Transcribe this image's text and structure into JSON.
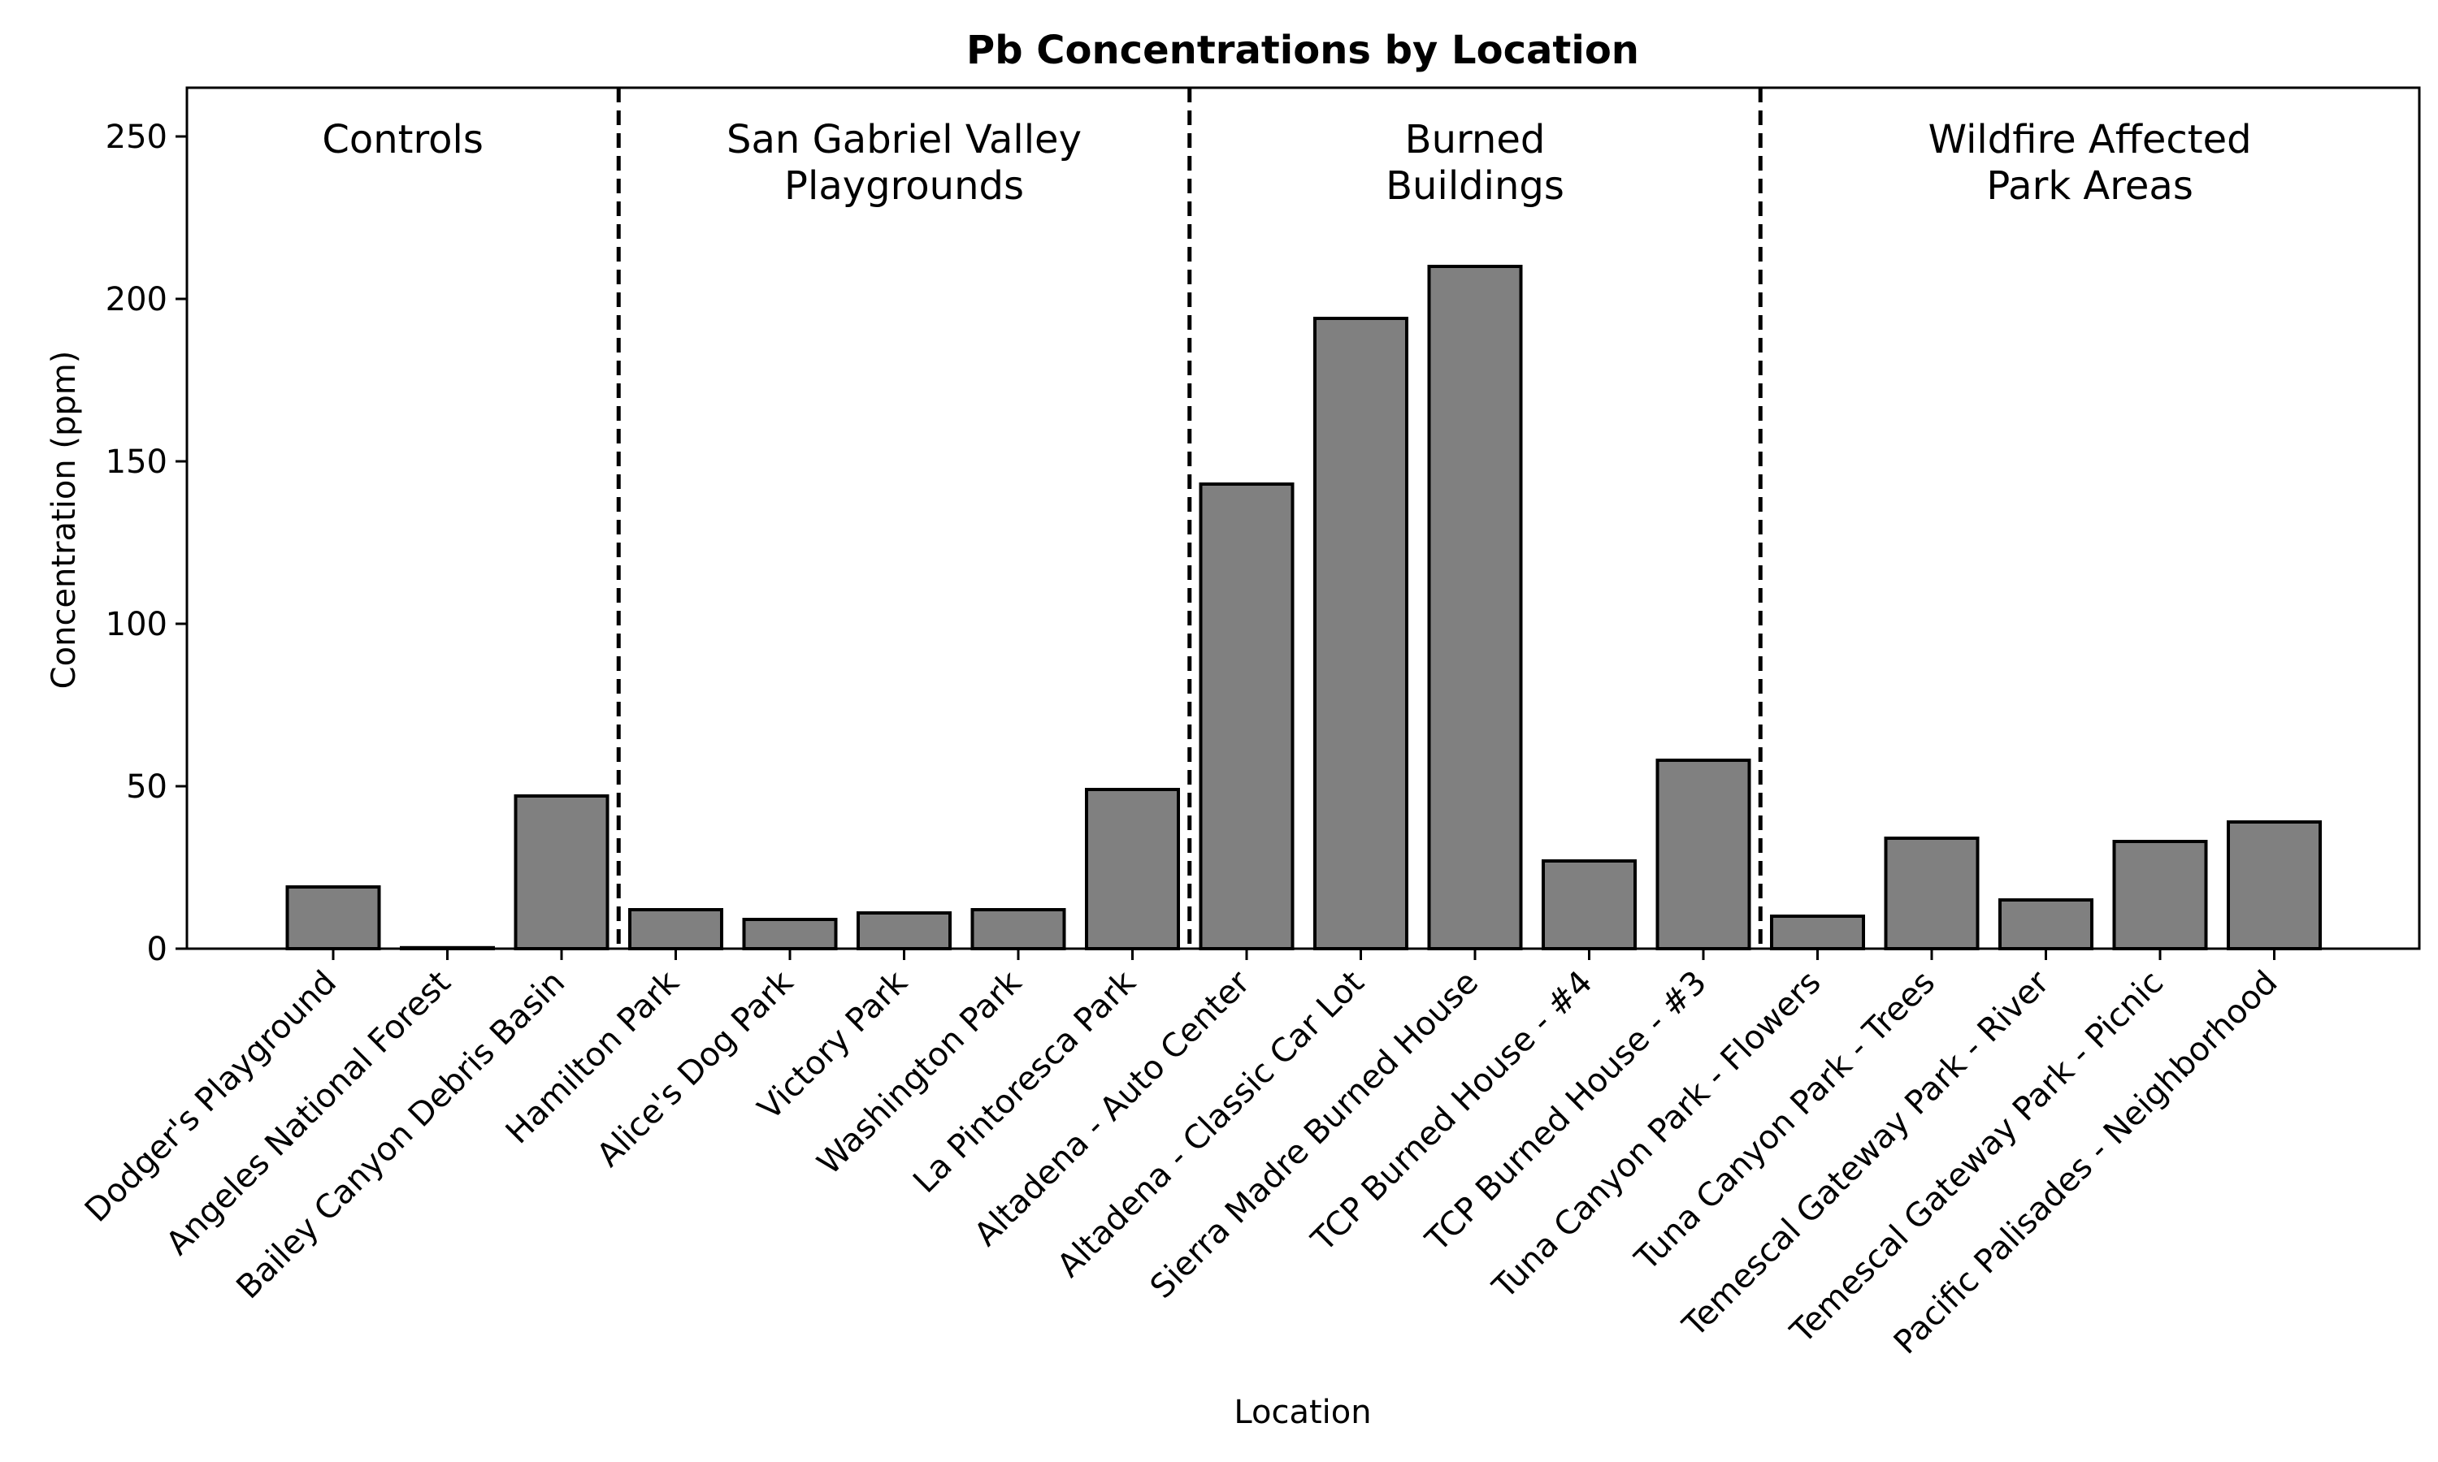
{
  "chart_data": {
    "type": "bar",
    "title": "Pb Concentrations by Location",
    "xlabel": "Location",
    "ylabel": "Concentration (ppm)",
    "ylim": [
      0,
      265
    ],
    "yticks": [
      0,
      50,
      100,
      150,
      200,
      250
    ],
    "grid": false,
    "bar_color": "#808080",
    "edge_color": "#000000",
    "categories": [
      "Dodger's Playground",
      "Angeles National Forest",
      "Bailey Canyon Debris Basin",
      "Hamilton Park",
      "Alice's Dog Park",
      "Victory Park",
      "Washington Park",
      "La Pintoresca Park",
      "Altadena - Auto Center",
      "Altadena - Classic Car Lot",
      "Sierra Madre Burned House",
      "TCP Burned House - #4",
      "TCP Burned House - #3",
      "Tuna Canyon Park - Flowers",
      "Tuna Canyon Park - Trees",
      "Temescal Gateway Park - River",
      "Temescal Gateway Park - Picnic",
      "Pacific Palisades - Neighborhood"
    ],
    "values": [
      19,
      0.3,
      47,
      12,
      9,
      11,
      12,
      49,
      143,
      194,
      210,
      27,
      58,
      10,
      34,
      15,
      33,
      39
    ],
    "groups": [
      {
        "lines": [
          "Controls"
        ],
        "start": 0,
        "end": 2
      },
      {
        "lines": [
          "San Gabriel Valley",
          "Playgrounds"
        ],
        "start": 3,
        "end": 7
      },
      {
        "lines": [
          "Burned",
          "Buildings"
        ],
        "start": 8,
        "end": 12
      },
      {
        "lines": [
          "Wildfire Affected",
          "Park Areas"
        ],
        "start": 13,
        "end": 17
      }
    ]
  }
}
